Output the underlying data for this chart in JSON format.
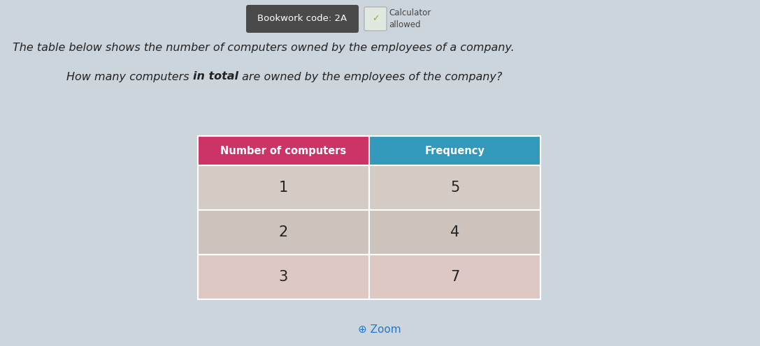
{
  "background_color": "#cdd5dc",
  "bookwork_label": "Bookwork code: 2A",
  "bookwork_bg": "#4a4a4a",
  "bookwork_fg": "#ffffff",
  "calculator_text": "Calculator\nallowed",
  "line1": "The table below shows the number of computers owned by the employees of a company.",
  "line2_normal1": "How many computers ",
  "line2_bold": "in total",
  "line2_normal2": " are owned by the employees of the company?",
  "col1_header": "Number of computers",
  "col2_header": "Frequency",
  "col1_header_color": "#cc3366",
  "col2_header_color": "#3399bb",
  "header_text_color": "#ffffff",
  "row_data": [
    [
      "1",
      "5"
    ],
    [
      "2",
      "4"
    ],
    [
      "3",
      "7"
    ]
  ],
  "row1_color_left": "#d4ccc4",
  "row1_color_right": "#d4ccc4",
  "row2_color_left": "#ccc4bc",
  "row2_color_right": "#ccc4bc",
  "row3_color_left": "#ddc8c4",
  "row3_color_right": "#ddc8c4",
  "cell_text_color": "#222222",
  "zoom_text": "Zoom",
  "zoom_color": "#2277cc"
}
